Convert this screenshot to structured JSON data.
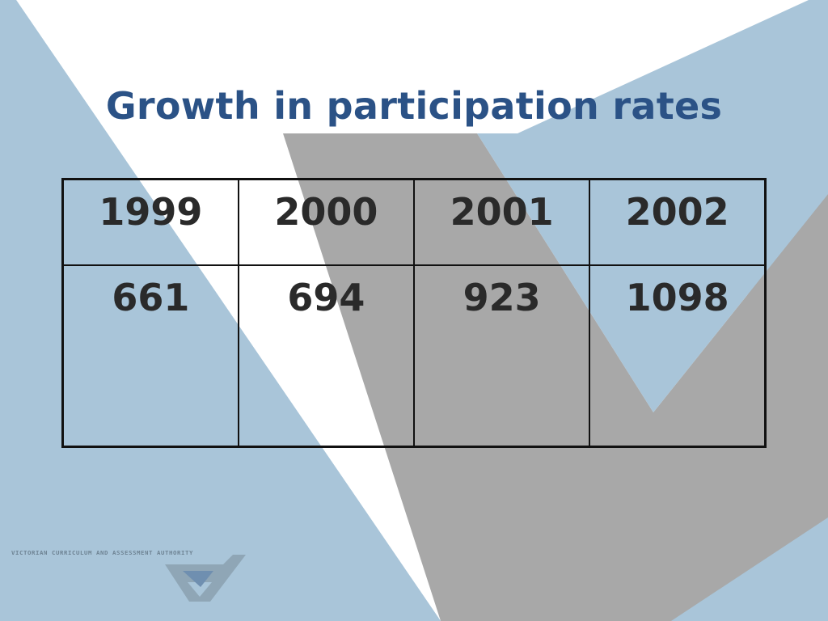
{
  "slide": {
    "title": "Growth in participation rates"
  },
  "table": {
    "headers": [
      "1999",
      "2000",
      "2001",
      "2002"
    ],
    "values": [
      "661",
      "694",
      "923",
      "1098"
    ]
  },
  "logo": {
    "text": "VICTORIAN CURRICULUM AND ASSESSMENT AUTHORITY",
    "icon": "vcaa-check-logo-icon"
  },
  "colors": {
    "background": "#a9c5d9",
    "white_band": "#ffffff",
    "grey_band": "#a8a8a8",
    "title": "#2b5286",
    "table_text": "#2a2a2a"
  }
}
